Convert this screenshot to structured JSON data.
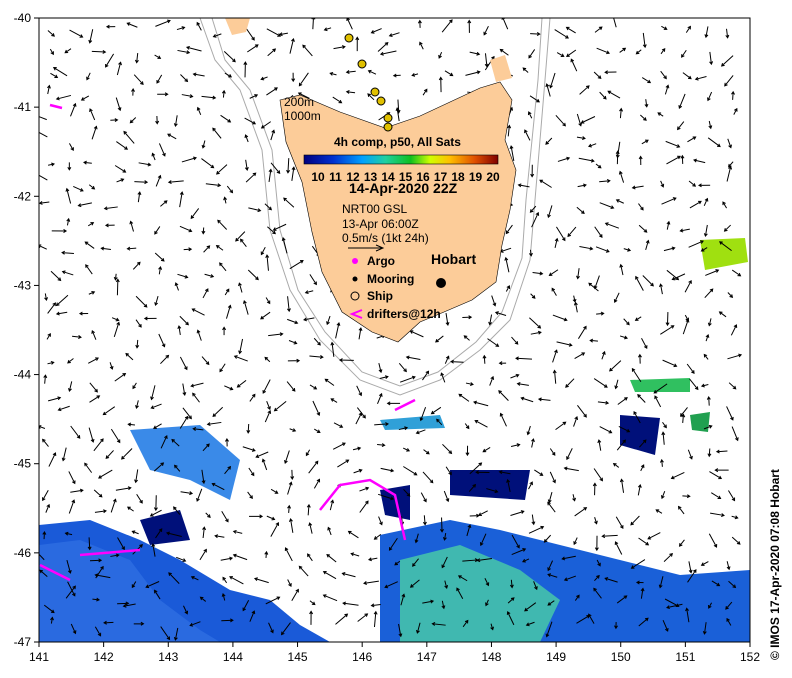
{
  "map": {
    "lon_ticks": [
      "141",
      "142",
      "143",
      "144",
      "145",
      "146",
      "147",
      "148",
      "149",
      "150",
      "151",
      "152"
    ],
    "lat_ticks": [
      "-40",
      "-41",
      "-42",
      "-43",
      "-44",
      "-45",
      "-46",
      "-47"
    ],
    "lon_range": [
      141,
      152
    ],
    "lat_range": [
      -47,
      -40
    ],
    "land_color": "#fccc99",
    "place_label": "Hobart"
  },
  "legend": {
    "isobath_200": "200m",
    "isobath_1000": "1000m",
    "colorbar_title": "4h comp, p50, All Sats",
    "colorbar_ticks": [
      "10",
      "11",
      "12",
      "13",
      "14",
      "15",
      "16",
      "17",
      "18",
      "19",
      "20"
    ],
    "date": "14-Apr-2020 22Z",
    "current_source": "NRT00 GSL",
    "current_time": "13-Apr 06:00Z",
    "scale_label": "0.5m/s (1kt 24h)",
    "argo": "Argo",
    "mooring": "Mooring",
    "ship": "Ship",
    "drifters": "drifters@12h"
  },
  "credit": "© IMOS 17-Apr-2020 07:08 Hobart"
}
